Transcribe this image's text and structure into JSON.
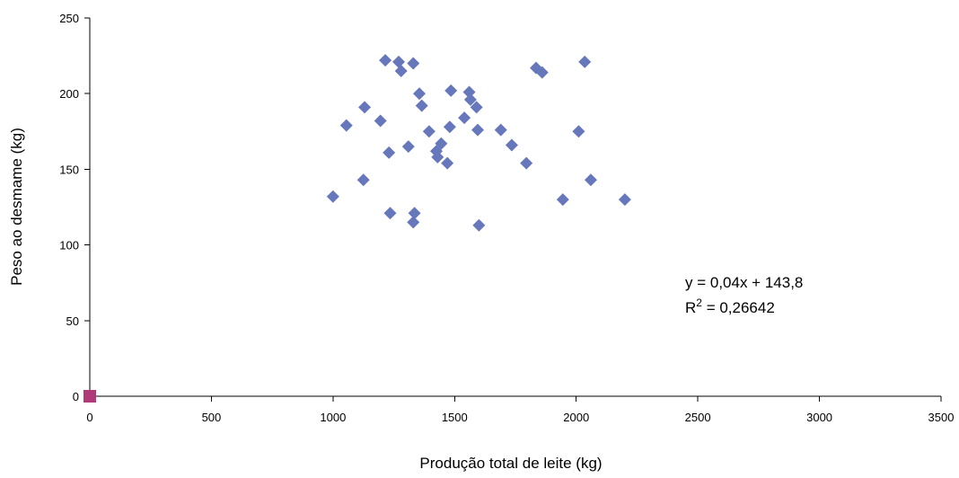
{
  "chart_data": {
    "type": "scatter",
    "title": "",
    "xlabel": "Produção total de leite (kg)",
    "ylabel": "Peso ao desmame (kg)",
    "xlim": [
      0,
      3500
    ],
    "ylim": [
      0,
      250
    ],
    "x_ticks": [
      "0",
      "500",
      "1000",
      "1500",
      "2000",
      "2500",
      "3000",
      "3500"
    ],
    "y_ticks": [
      "0",
      "50",
      "100",
      "150",
      "200",
      "250"
    ],
    "grid": false,
    "series": [
      {
        "marker": "diamond",
        "color": "#6677bb",
        "points": [
          [
            1000,
            132
          ],
          [
            1055,
            179
          ],
          [
            1125,
            143
          ],
          [
            1130,
            191
          ],
          [
            1195,
            182
          ],
          [
            1215,
            222
          ],
          [
            1230,
            161
          ],
          [
            1235,
            121
          ],
          [
            1270,
            221
          ],
          [
            1280,
            215
          ],
          [
            1310,
            165
          ],
          [
            1330,
            220
          ],
          [
            1330,
            115
          ],
          [
            1335,
            121
          ],
          [
            1355,
            200
          ],
          [
            1365,
            192
          ],
          [
            1395,
            175
          ],
          [
            1425,
            162
          ],
          [
            1430,
            158
          ],
          [
            1445,
            167
          ],
          [
            1470,
            154
          ],
          [
            1480,
            178
          ],
          [
            1485,
            202
          ],
          [
            1540,
            184
          ],
          [
            1560,
            201
          ],
          [
            1565,
            196
          ],
          [
            1590,
            191
          ],
          [
            1595,
            176
          ],
          [
            1600,
            113
          ],
          [
            1690,
            176
          ],
          [
            1735,
            166
          ],
          [
            1795,
            154
          ],
          [
            1835,
            217
          ],
          [
            1860,
            214
          ],
          [
            1945,
            130
          ],
          [
            2010,
            175
          ],
          [
            2035,
            221
          ],
          [
            2060,
            143
          ],
          [
            2200,
            130
          ]
        ]
      },
      {
        "marker": "square",
        "color": "#b03a78",
        "points": [
          [
            0,
            0
          ]
        ]
      }
    ],
    "annotation": {
      "equation": "y = 0,04x + 143,8",
      "r2_prefix": "R",
      "r2_superscript": "2",
      "r2_value": " = 0,26642"
    }
  }
}
